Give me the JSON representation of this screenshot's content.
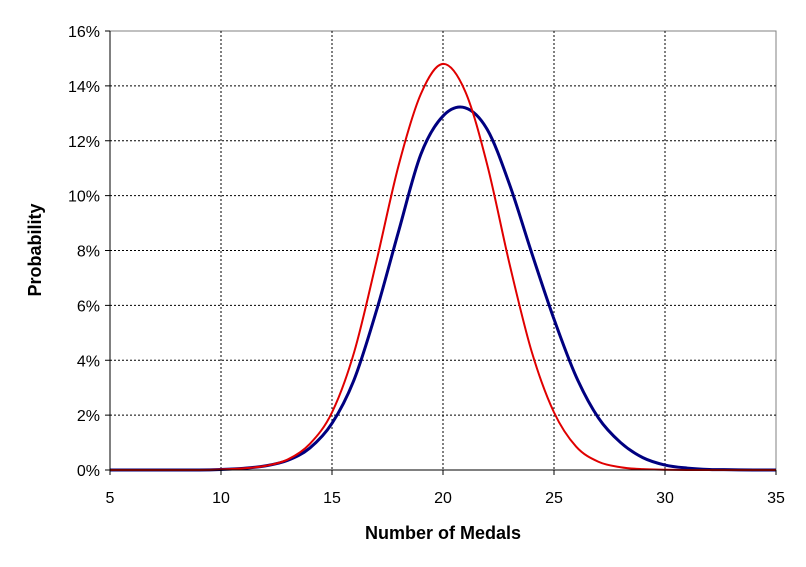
{
  "chart_data": {
    "type": "line",
    "xlabel": "Number of Medals",
    "ylabel": "Probability",
    "xlim": [
      5,
      35
    ],
    "ylim": [
      0,
      0.16
    ],
    "x_ticks": [
      5,
      10,
      15,
      20,
      25,
      30,
      35
    ],
    "x_tick_labels": [
      "5",
      "10",
      "15",
      "20",
      "25",
      "30",
      "35"
    ],
    "y_ticks": [
      0,
      0.02,
      0.04,
      0.06,
      0.08,
      0.1,
      0.12,
      0.14,
      0.16
    ],
    "y_tick_labels": [
      "0%",
      "2%",
      "4%",
      "6%",
      "8%",
      "10%",
      "12%",
      "14%",
      "16%"
    ],
    "grid": true,
    "legend": "none",
    "series": [
      {
        "color": "#000080",
        "x": [
          5,
          6,
          7,
          8,
          9,
          10,
          11,
          12,
          13,
          14,
          15,
          16,
          17,
          18,
          19,
          20,
          21,
          22,
          23,
          24,
          25,
          26,
          27,
          28,
          29,
          30,
          31,
          32,
          33,
          34,
          35
        ],
        "values": [
          0,
          0,
          0,
          0,
          0,
          0.0002,
          0.0006,
          0.0015,
          0.0035,
          0.008,
          0.017,
          0.033,
          0.058,
          0.087,
          0.115,
          0.129,
          0.132,
          0.124,
          0.104,
          0.079,
          0.055,
          0.034,
          0.019,
          0.01,
          0.0045,
          0.0018,
          0.0007,
          0.0002,
          0.0001,
          0,
          0
        ]
      },
      {
        "color": "#e00000",
        "x": [
          5,
          6,
          7,
          8,
          9,
          10,
          11,
          12,
          13,
          14,
          15,
          16,
          17,
          18,
          19,
          20,
          21,
          22,
          23,
          24,
          25,
          26,
          27,
          28,
          29,
          30,
          31,
          32,
          33,
          34,
          35
        ],
        "values": [
          0,
          0,
          0,
          0,
          0,
          0.0002,
          0.0006,
          0.0015,
          0.0038,
          0.0095,
          0.021,
          0.043,
          0.076,
          0.111,
          0.137,
          0.148,
          0.138,
          0.111,
          0.075,
          0.043,
          0.021,
          0.0085,
          0.003,
          0.001,
          0.0003,
          0.0001,
          0,
          0,
          0,
          0,
          0
        ]
      }
    ]
  }
}
